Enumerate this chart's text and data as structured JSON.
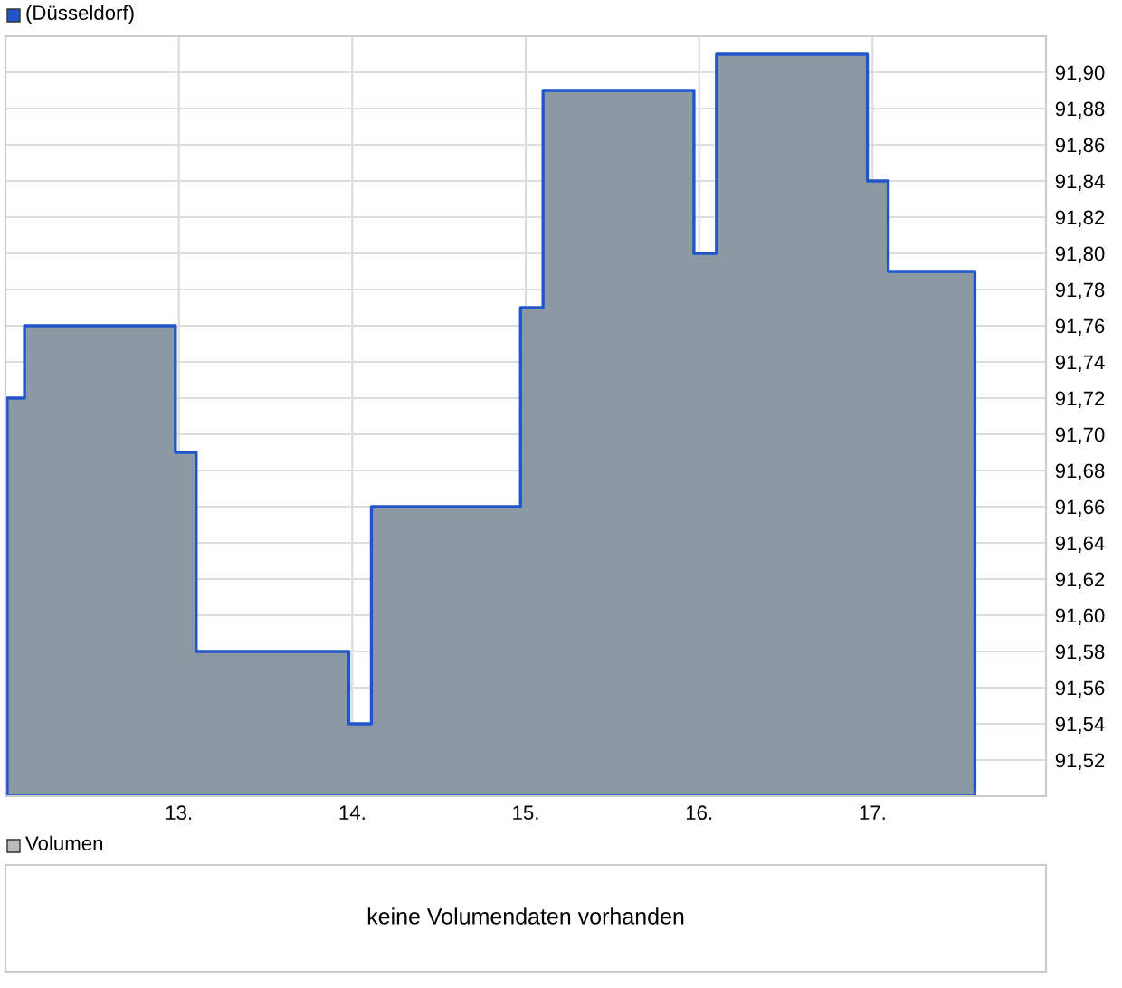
{
  "chart_data": [
    {
      "type": "area",
      "title": "(Düsseldorf)",
      "x": [
        12.01,
        12.11,
        12.98,
        13.1,
        13.98,
        14.11,
        14.97,
        15.1,
        15.97,
        16.1,
        16.97,
        17.09,
        17.59
      ],
      "series": [
        {
          "color": "#8a99a3",
          "values": [
            91.72,
            91.76,
            91.69,
            91.58,
            91.54,
            91.66,
            91.77,
            91.89,
            91.8,
            91.91,
            91.84,
            91.79,
            91.79
          ]
        }
      ],
      "xlim": [
        12.0,
        18.0
      ],
      "xticks": [
        {
          "value": 13,
          "label": "13."
        },
        {
          "value": 14,
          "label": "14."
        },
        {
          "value": 15,
          "label": "15."
        },
        {
          "value": 16,
          "label": "16."
        },
        {
          "value": 17,
          "label": "17."
        }
      ],
      "ylim": [
        91.5,
        91.92
      ],
      "yticks": [
        {
          "value": 91.52,
          "label": "91,52"
        },
        {
          "value": 91.54,
          "label": "91,54"
        },
        {
          "value": 91.56,
          "label": "91,56"
        },
        {
          "value": 91.58,
          "label": "91,58"
        },
        {
          "value": 91.6,
          "label": "91,60"
        },
        {
          "value": 91.62,
          "label": "91,62"
        },
        {
          "value": 91.64,
          "label": "91,64"
        },
        {
          "value": 91.66,
          "label": "91,66"
        },
        {
          "value": 91.68,
          "label": "91,68"
        },
        {
          "value": 91.7,
          "label": "91,70"
        },
        {
          "value": 91.72,
          "label": "91,72"
        },
        {
          "value": 91.74,
          "label": "91,74"
        },
        {
          "value": 91.76,
          "label": "91,76"
        },
        {
          "value": 91.78,
          "label": "91,78"
        },
        {
          "value": 91.8,
          "label": "91,80"
        },
        {
          "value": 91.82,
          "label": "91,82"
        },
        {
          "value": 91.84,
          "label": "91,84"
        },
        {
          "value": 91.86,
          "label": "91,86"
        },
        {
          "value": 91.88,
          "label": "91,88"
        },
        {
          "value": 91.9,
          "label": "91,90"
        }
      ],
      "grid": true
    },
    {
      "type": "other",
      "title": "Volumen",
      "annotations": [
        "keine Volumendaten vorhanden"
      ]
    }
  ]
}
